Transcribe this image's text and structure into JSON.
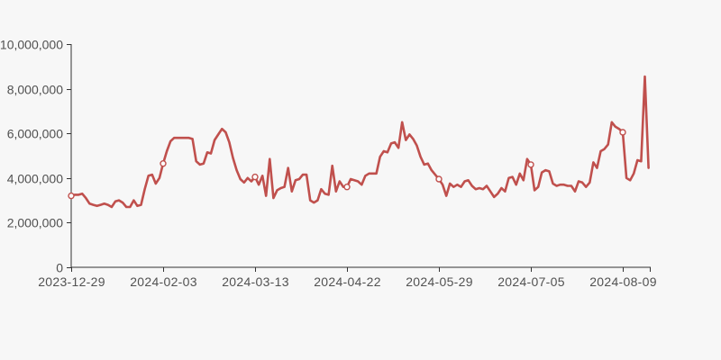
{
  "colors": {
    "background": "#f7f7f7",
    "line": "#c0504d",
    "axis": "#333333",
    "tick_label": "#515151",
    "marker_fill": "#fdfdfd"
  },
  "chart_data": {
    "type": "line",
    "title": "",
    "xlabel": "",
    "ylabel": "",
    "grid": false,
    "legend_position": "none",
    "ylim": [
      0,
      10000000
    ],
    "y_ticks": [
      {
        "value": 0,
        "label": "0"
      },
      {
        "value": 2000000,
        "label": "2,000,000"
      },
      {
        "value": 4000000,
        "label": "4,000,000"
      },
      {
        "value": 6000000,
        "label": "6,000,000"
      },
      {
        "value": 8000000,
        "label": "8,000,000"
      },
      {
        "value": 10000000,
        "label": "10,000,000"
      }
    ],
    "x_tick_labels": [
      "2023-12-29",
      "2024-02-03",
      "2024-03-13",
      "2024-04-22",
      "2024-05-29",
      "2024-07-05",
      "2024-08-09"
    ],
    "x_tick_indices": [
      0,
      25,
      50,
      75,
      100,
      125,
      150
    ],
    "marker_indices": [
      0,
      25,
      50,
      75,
      100,
      125,
      150
    ],
    "marker_values": [
      3200000,
      4650000,
      4050000,
      3600000,
      3950000,
      4600000,
      6050000
    ],
    "values": [
      3200000,
      3250000,
      3250000,
      3300000,
      3100000,
      2850000,
      2800000,
      2750000,
      2800000,
      2850000,
      2800000,
      2700000,
      2950000,
      3000000,
      2900000,
      2700000,
      2700000,
      3000000,
      2750000,
      2800000,
      3500000,
      4100000,
      4150000,
      3750000,
      4000000,
      4650000,
      5200000,
      5650000,
      5800000,
      5800000,
      5800000,
      5800000,
      5800000,
      5750000,
      4750000,
      4600000,
      4650000,
      5150000,
      5100000,
      5700000,
      5950000,
      6200000,
      6050000,
      5600000,
      4900000,
      4350000,
      3950000,
      3800000,
      4000000,
      3850000,
      4050000,
      3700000,
      4100000,
      3200000,
      4850000,
      3100000,
      3450000,
      3550000,
      3600000,
      4450000,
      3400000,
      3900000,
      3950000,
      4150000,
      4150000,
      3000000,
      2900000,
      3000000,
      3500000,
      3300000,
      3250000,
      4550000,
      3400000,
      3850000,
      3600000,
      3600000,
      3950000,
      3900000,
      3850000,
      3700000,
      4100000,
      4200000,
      4200000,
      4200000,
      4950000,
      5200000,
      5150000,
      5550000,
      5600000,
      5350000,
      6500000,
      5700000,
      5950000,
      5750000,
      5450000,
      4950000,
      4600000,
      4650000,
      4350000,
      4150000,
      3950000,
      3700000,
      3200000,
      3750000,
      3600000,
      3700000,
      3600000,
      3850000,
      3900000,
      3650000,
      3500000,
      3550000,
      3500000,
      3650000,
      3400000,
      3150000,
      3300000,
      3550000,
      3400000,
      4000000,
      4050000,
      3700000,
      4200000,
      3900000,
      4850000,
      4600000,
      3450000,
      3600000,
      4250000,
      4350000,
      4300000,
      3750000,
      3650000,
      3700000,
      3700000,
      3650000,
      3650000,
      3400000,
      3850000,
      3800000,
      3600000,
      3800000,
      4700000,
      4450000,
      5200000,
      5300000,
      5500000,
      6500000,
      6300000,
      6200000,
      6050000,
      4000000,
      3900000,
      4200000,
      4800000,
      4750000,
      8550000,
      4450000
    ]
  }
}
